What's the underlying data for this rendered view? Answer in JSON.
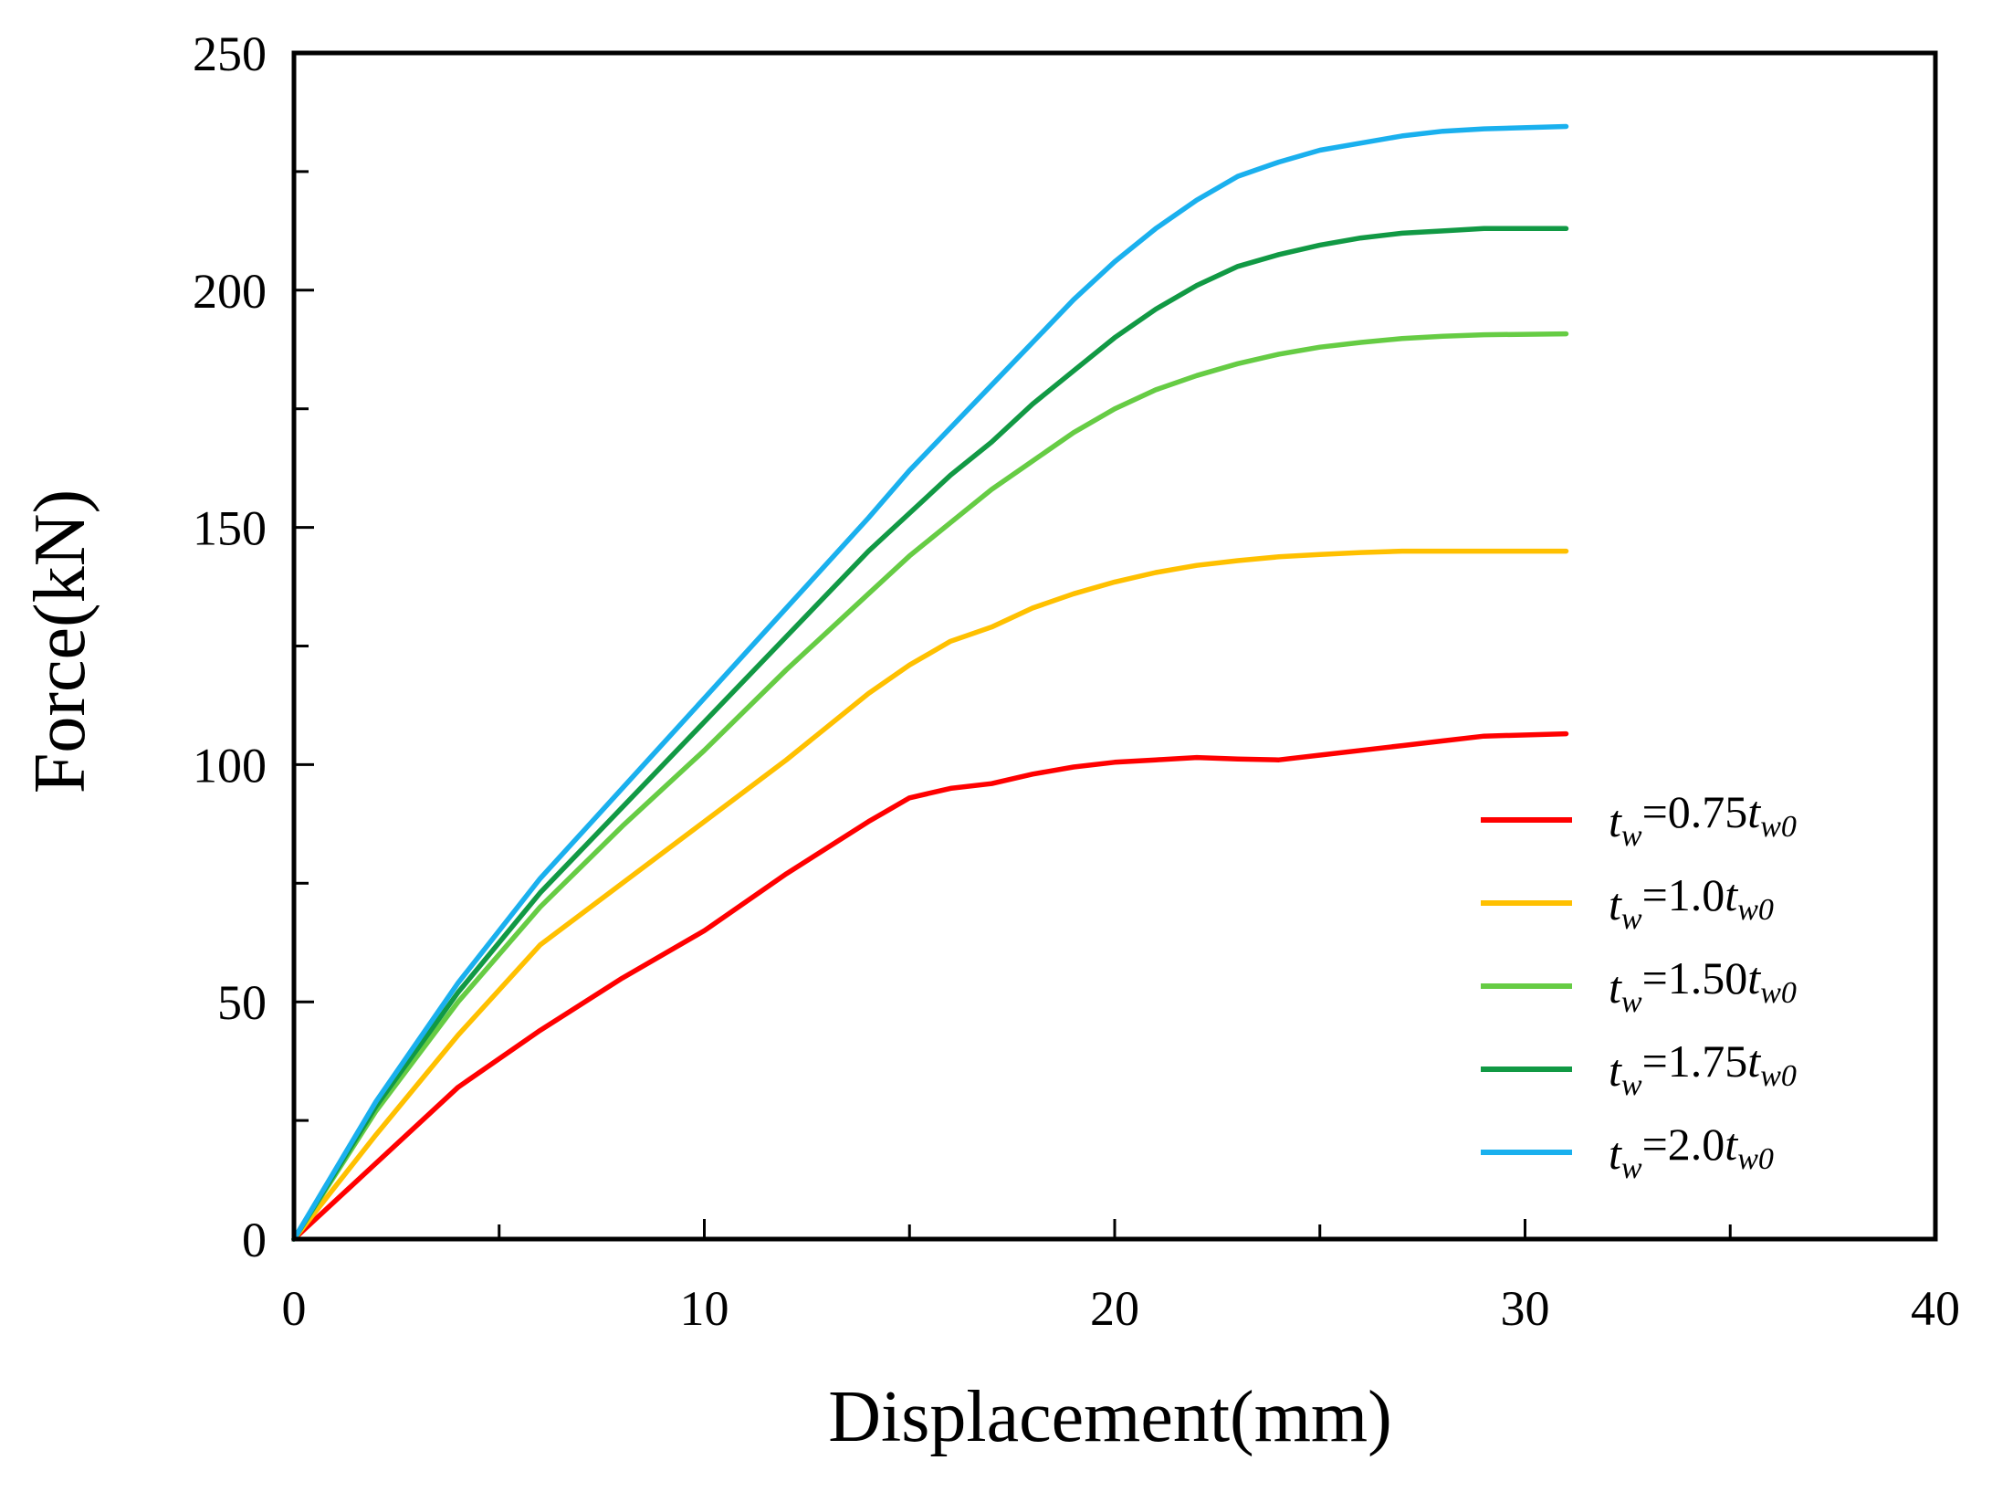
{
  "chart_data": {
    "type": "line",
    "title": "",
    "xlabel": "Displacement(mm)",
    "ylabel": "Force(kN)",
    "xlim": [
      0,
      40
    ],
    "ylim": [
      0,
      250
    ],
    "xticks": [
      0,
      10,
      20,
      30,
      40
    ],
    "xtick_labels": [
      "0",
      "10",
      "20",
      "30",
      "40"
    ],
    "yticks": [
      0,
      50,
      100,
      150,
      200,
      250
    ],
    "ytick_labels": [
      "0",
      "50",
      "100",
      "150",
      "200",
      "250"
    ],
    "x_minor_step": 5,
    "y_minor_step": 25,
    "grid": false,
    "legend_position": "bottom-right",
    "series": [
      {
        "name": "tw=0.75tw0",
        "label_parts": {
          "sym": "t",
          "sub1": "w",
          "value": "=0.75",
          "sym2": "t",
          "sub2": "w0"
        },
        "color": "#ff0000",
        "points": [
          [
            0,
            0
          ],
          [
            2,
            16
          ],
          [
            4,
            32
          ],
          [
            6,
            44
          ],
          [
            8,
            55
          ],
          [
            10,
            65
          ],
          [
            12,
            77
          ],
          [
            14,
            88
          ],
          [
            15,
            93
          ],
          [
            16,
            95
          ],
          [
            17,
            96
          ],
          [
            18,
            98
          ],
          [
            19,
            99.5
          ],
          [
            20,
            100.5
          ],
          [
            21,
            101
          ],
          [
            22,
            101.5
          ],
          [
            23,
            101.2
          ],
          [
            24,
            101
          ],
          [
            25,
            102
          ],
          [
            26,
            103
          ],
          [
            27,
            104
          ],
          [
            28,
            105
          ],
          [
            29,
            106
          ],
          [
            31,
            106.5
          ]
        ]
      },
      {
        "name": "tw=1.0tw0",
        "label_parts": {
          "sym": "t",
          "sub1": "w",
          "value": "=1.0",
          "sym2": "t",
          "sub2": "w0"
        },
        "color": "#ffc000",
        "points": [
          [
            0,
            0
          ],
          [
            2,
            22
          ],
          [
            4,
            43
          ],
          [
            6,
            62
          ],
          [
            8,
            75
          ],
          [
            10,
            88
          ],
          [
            12,
            101
          ],
          [
            14,
            115
          ],
          [
            15,
            121
          ],
          [
            16,
            126
          ],
          [
            17,
            129
          ],
          [
            18,
            133
          ],
          [
            19,
            136
          ],
          [
            20,
            138.5
          ],
          [
            21,
            140.5
          ],
          [
            22,
            142
          ],
          [
            23,
            143
          ],
          [
            24,
            143.8
          ],
          [
            25,
            144.3
          ],
          [
            26,
            144.7
          ],
          [
            27,
            145
          ],
          [
            28,
            145
          ],
          [
            29,
            145
          ],
          [
            31,
            145
          ]
        ]
      },
      {
        "name": "tw=1.50tw0",
        "label_parts": {
          "sym": "t",
          "sub1": "w",
          "value": "=1.50",
          "sym2": "t",
          "sub2": "w0"
        },
        "color": "#66cc44",
        "points": [
          [
            0,
            0
          ],
          [
            2,
            27
          ],
          [
            4,
            50
          ],
          [
            6,
            70
          ],
          [
            8,
            87
          ],
          [
            10,
            103
          ],
          [
            12,
            120
          ],
          [
            14,
            136
          ],
          [
            15,
            144
          ],
          [
            16,
            151
          ],
          [
            17,
            158
          ],
          [
            18,
            164
          ],
          [
            19,
            170
          ],
          [
            20,
            175
          ],
          [
            21,
            179
          ],
          [
            22,
            182
          ],
          [
            23,
            184.5
          ],
          [
            24,
            186.5
          ],
          [
            25,
            188
          ],
          [
            26,
            189
          ],
          [
            27,
            189.8
          ],
          [
            28,
            190.3
          ],
          [
            29,
            190.6
          ],
          [
            31,
            190.8
          ]
        ]
      },
      {
        "name": "tw=1.75tw0",
        "label_parts": {
          "sym": "t",
          "sub1": "w",
          "value": "=1.75",
          "sym2": "t",
          "sub2": "w0"
        },
        "color": "#119944",
        "points": [
          [
            0,
            0
          ],
          [
            2,
            28
          ],
          [
            4,
            52
          ],
          [
            6,
            73
          ],
          [
            8,
            91
          ],
          [
            10,
            109
          ],
          [
            12,
            127
          ],
          [
            14,
            145
          ],
          [
            15,
            153
          ],
          [
            16,
            161
          ],
          [
            17,
            168
          ],
          [
            18,
            176
          ],
          [
            19,
            183
          ],
          [
            20,
            190
          ],
          [
            21,
            196
          ],
          [
            22,
            201
          ],
          [
            23,
            205
          ],
          [
            24,
            207.5
          ],
          [
            25,
            209.5
          ],
          [
            26,
            211
          ],
          [
            27,
            212
          ],
          [
            28,
            212.5
          ],
          [
            29,
            213
          ],
          [
            31,
            213
          ]
        ]
      },
      {
        "name": "tw=2.0tw0",
        "label_parts": {
          "sym": "t",
          "sub1": "w",
          "value": "=2.0",
          "sym2": "t",
          "sub2": "w0"
        },
        "color": "#1ab0ee",
        "points": [
          [
            0,
            0
          ],
          [
            2,
            29
          ],
          [
            4,
            54
          ],
          [
            6,
            76
          ],
          [
            8,
            95
          ],
          [
            10,
            114
          ],
          [
            12,
            133
          ],
          [
            14,
            152
          ],
          [
            15,
            162
          ],
          [
            16,
            171
          ],
          [
            17,
            180
          ],
          [
            18,
            189
          ],
          [
            19,
            198
          ],
          [
            20,
            206
          ],
          [
            21,
            213
          ],
          [
            22,
            219
          ],
          [
            23,
            224
          ],
          [
            24,
            227
          ],
          [
            25,
            229.5
          ],
          [
            26,
            231
          ],
          [
            27,
            232.5
          ],
          [
            28,
            233.5
          ],
          [
            29,
            234
          ],
          [
            31,
            234.5
          ]
        ]
      }
    ]
  }
}
